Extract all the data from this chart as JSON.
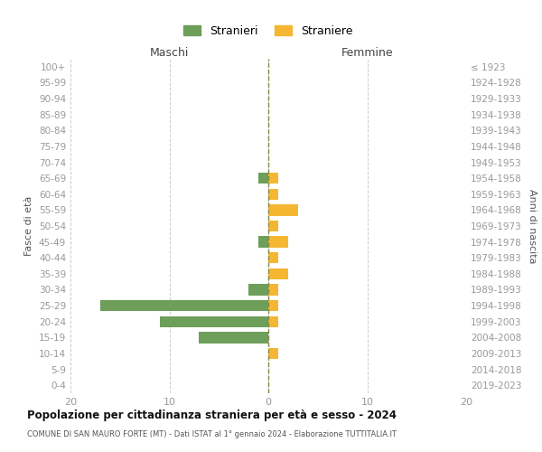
{
  "age_groups": [
    "100+",
    "95-99",
    "90-94",
    "85-89",
    "80-84",
    "75-79",
    "70-74",
    "65-69",
    "60-64",
    "55-59",
    "50-54",
    "45-49",
    "40-44",
    "35-39",
    "30-34",
    "25-29",
    "20-24",
    "15-19",
    "10-14",
    "5-9",
    "0-4"
  ],
  "birth_years": [
    "≤ 1923",
    "1924-1928",
    "1929-1933",
    "1934-1938",
    "1939-1943",
    "1944-1948",
    "1949-1953",
    "1954-1958",
    "1959-1963",
    "1964-1968",
    "1969-1973",
    "1974-1978",
    "1979-1983",
    "1984-1988",
    "1989-1993",
    "1994-1998",
    "1999-2003",
    "2004-2008",
    "2009-2013",
    "2014-2018",
    "2019-2023"
  ],
  "males": [
    0,
    0,
    0,
    0,
    0,
    0,
    0,
    1,
    0,
    0,
    0,
    1,
    0,
    0,
    2,
    17,
    11,
    7,
    0,
    0,
    0
  ],
  "females": [
    0,
    0,
    0,
    0,
    0,
    0,
    0,
    1,
    1,
    3,
    1,
    2,
    1,
    2,
    1,
    1,
    1,
    0,
    1,
    0,
    0
  ],
  "male_color": "#6d9e5a",
  "female_color": "#f5b731",
  "background_color": "#ffffff",
  "grid_color": "#cccccc",
  "title": "Popolazione per cittadinanza straniera per età e sesso - 2024",
  "subtitle": "COMUNE DI SAN MAURO FORTE (MT) - Dati ISTAT al 1° gennaio 2024 - Elaborazione TUTTITALIA.IT",
  "xlabel_left": "Maschi",
  "xlabel_right": "Femmine",
  "ylabel_left": "Fasce di età",
  "ylabel_right": "Anni di nascita",
  "xlim": 20,
  "legend_stranieri": "Stranieri",
  "legend_straniere": "Straniere",
  "axis_label_color": "#555555",
  "tick_label_color": "#999999"
}
